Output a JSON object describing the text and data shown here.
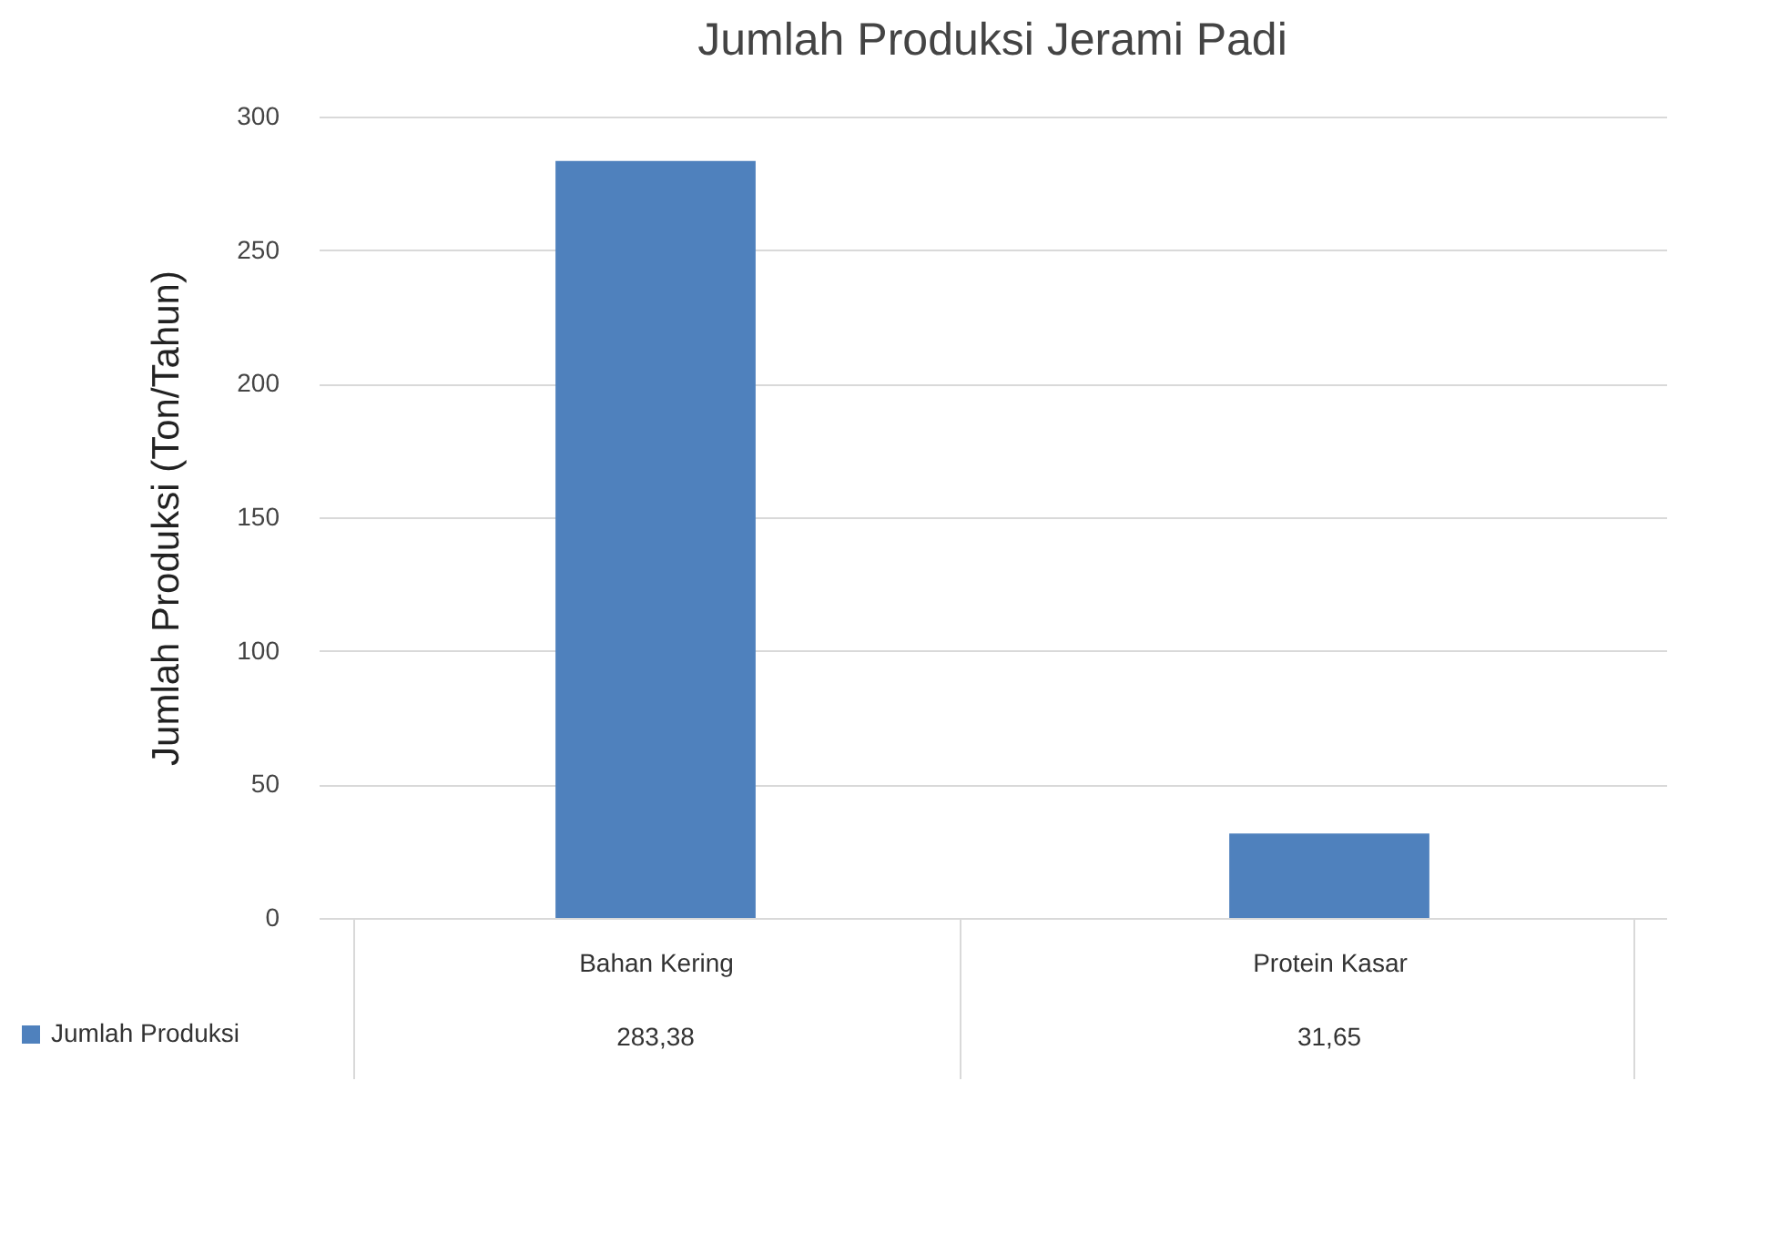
{
  "chart_data": {
    "type": "bar",
    "title": "Jumlah Produksi Jerami Padi",
    "ylabel": "Jumlah Produksi (Ton/Tahun)",
    "categories": [
      "Bahan Kering",
      "Protein Kasar"
    ],
    "series": [
      {
        "name": "Jumlah Produksi",
        "color": "#4f81bd",
        "values": [
          283.38,
          31.65
        ],
        "value_labels": [
          "283,38",
          "31,65"
        ]
      }
    ],
    "ylim": [
      0,
      300
    ],
    "yticks": [
      0,
      50,
      100,
      150,
      200,
      250,
      300
    ],
    "grid": "y",
    "legend": "bottom left"
  }
}
